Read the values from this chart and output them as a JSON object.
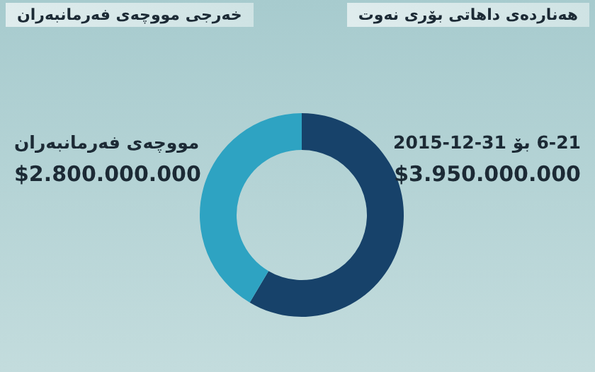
{
  "chart_data": {
    "type": "donut",
    "annotations": [
      "هەناردەی داهاتی بۆری نەوت",
      "خەرجی مووچەی فەرمانبەران"
    ],
    "categories": [
      "6-21 بۆ 2015-12-31",
      "مووچەی فەرمانبەران"
    ],
    "values": [
      3950000000,
      2800000000
    ],
    "value_labels": [
      "$3.950.000.000",
      "$2.800.000.000"
    ],
    "colors": [
      "#17426a",
      "#2ea3c2"
    ]
  }
}
